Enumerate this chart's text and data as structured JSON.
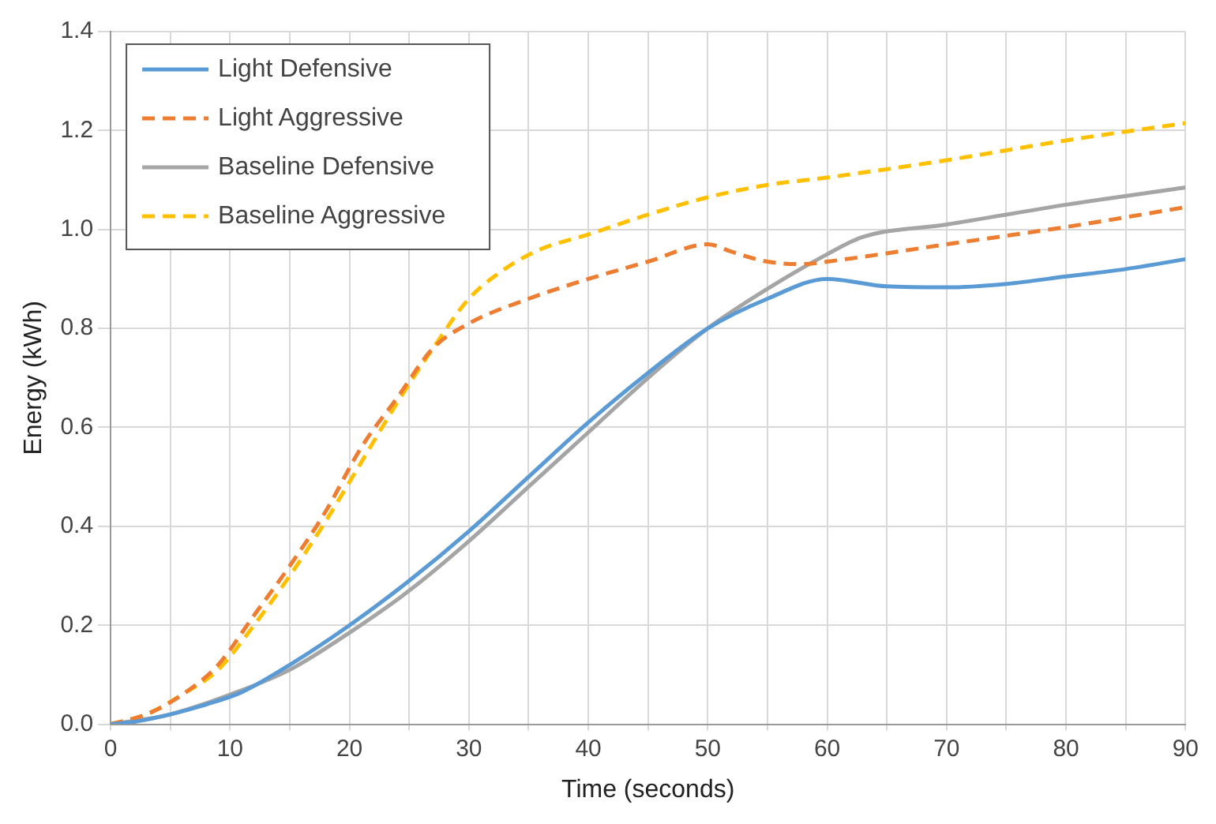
{
  "chart_data": {
    "type": "line",
    "xlabel": "Time (seconds)",
    "ylabel": "Energy (kWh)",
    "xlim": [
      0,
      90
    ],
    "ylim": [
      0,
      1.4
    ],
    "xticks": [
      0,
      {
        "value": 5,
        "label": null
      },
      10,
      {
        "value": 15,
        "label": null
      },
      20,
      {
        "value": 25,
        "label": null
      },
      30,
      {
        "value": 35,
        "label": null
      },
      40,
      {
        "value": 45,
        "label": null
      },
      50,
      {
        "value": 55,
        "label": null
      },
      60,
      {
        "value": 65,
        "label": null
      },
      70,
      {
        "value": 75,
        "label": null
      },
      80,
      {
        "value": 85,
        "label": null
      },
      90
    ],
    "yticks": [
      {
        "value": 0,
        "label": "0.0"
      },
      0.2,
      0.4,
      0.6,
      0.8,
      {
        "value": 1,
        "label": "1.0"
      },
      1.2,
      1.4
    ],
    "grid": true,
    "legend": "top left",
    "marker": "none",
    "series": [
      {
        "name": "Light Defensive",
        "color": "#5b9bd5",
        "line_style": "solid",
        "x": [
          0,
          2,
          5,
          8,
          11,
          15,
          20,
          25,
          30,
          35,
          40,
          45,
          50,
          55,
          60,
          65,
          70,
          75,
          80,
          85,
          90
        ],
        "values": [
          0,
          0.005,
          0.02,
          0.04,
          0.065,
          0.12,
          0.2,
          0.29,
          0.39,
          0.5,
          0.61,
          0.71,
          0.8,
          0.86,
          0.9,
          0.885,
          0.883,
          0.89,
          0.905,
          0.92,
          0.94
        ]
      },
      {
        "name": "Light Aggressive",
        "color": "#ed7d31",
        "line_style": "dashed",
        "x": [
          0,
          3,
          6,
          9,
          12,
          15,
          18,
          21,
          24,
          27,
          30,
          35,
          40,
          45,
          50,
          52,
          55,
          58,
          60,
          70,
          80,
          90
        ],
        "values": [
          0,
          0.02,
          0.06,
          0.12,
          0.22,
          0.32,
          0.43,
          0.56,
          0.66,
          0.76,
          0.81,
          0.86,
          0.9,
          0.935,
          0.97,
          0.955,
          0.935,
          0.93,
          0.935,
          0.97,
          1.005,
          1.045
        ]
      },
      {
        "name": "Baseline Defensive",
        "color": "#a5a5a5",
        "line_style": "solid",
        "x": [
          0,
          5,
          10,
          15,
          20,
          25,
          30,
          35,
          40,
          45,
          50,
          55,
          60,
          63,
          70,
          80,
          90
        ],
        "values": [
          0,
          0.02,
          0.06,
          0.11,
          0.185,
          0.27,
          0.37,
          0.48,
          0.59,
          0.7,
          0.8,
          0.88,
          0.95,
          0.985,
          1.01,
          1.05,
          1.085
        ]
      },
      {
        "name": "Baseline Aggressive",
        "color": "#ffc000",
        "line_style": "dashed",
        "x": [
          0,
          3,
          6,
          9,
          12,
          15,
          18,
          21,
          24,
          27,
          30,
          33,
          36,
          40,
          45,
          50,
          55,
          60,
          70,
          80,
          90
        ],
        "values": [
          0,
          0.02,
          0.06,
          0.11,
          0.2,
          0.3,
          0.41,
          0.53,
          0.65,
          0.76,
          0.86,
          0.92,
          0.96,
          0.99,
          1.03,
          1.065,
          1.09,
          1.105,
          1.14,
          1.18,
          1.215
        ]
      }
    ]
  }
}
